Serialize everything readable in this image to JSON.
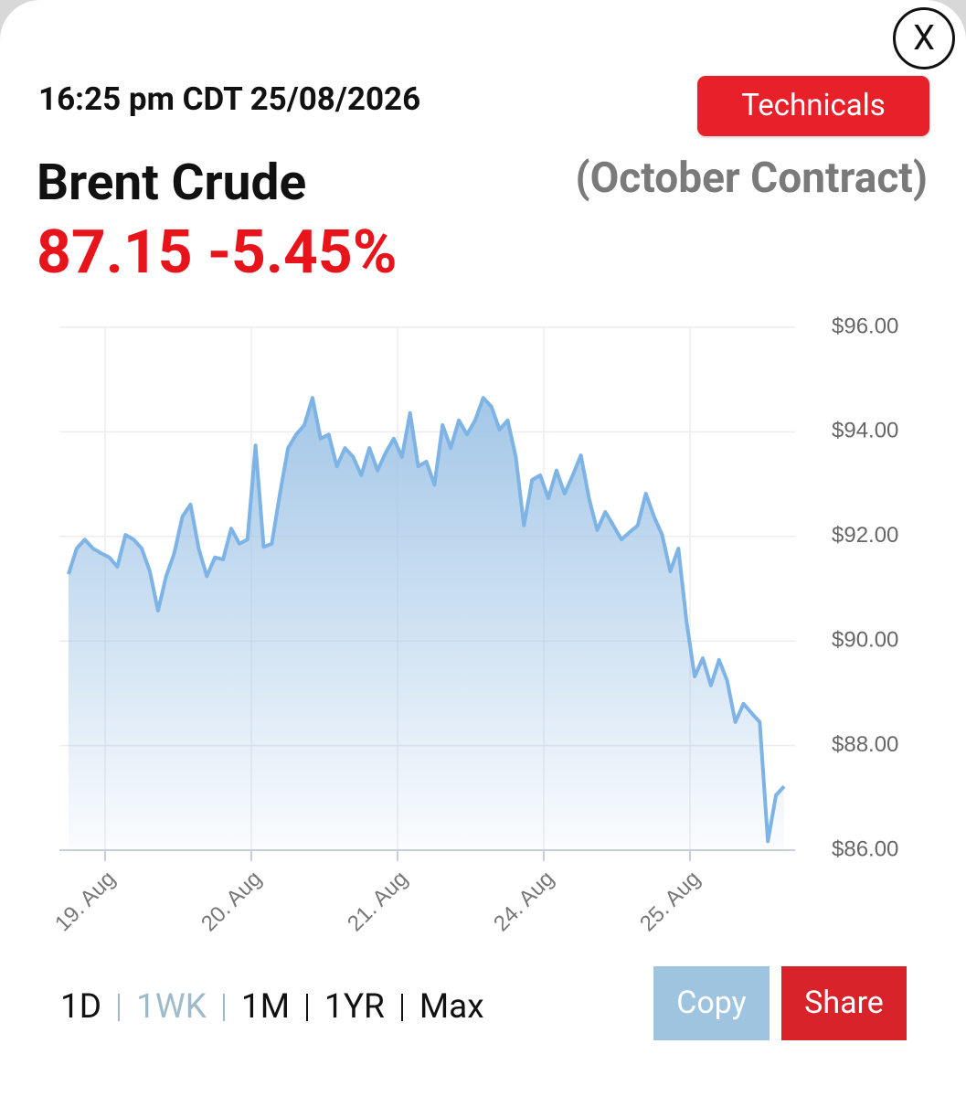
{
  "header": {
    "close": "X",
    "timestamp": "16:25 pm CDT 25/08/2026",
    "technicals": "Technicals",
    "instrument": "Brent Crude",
    "contract": "(October Contract)",
    "price": "87.15",
    "change": "-5.45%"
  },
  "chart_data": {
    "type": "area",
    "color": "#7eb3e6",
    "values": [
      91.28,
      91.77,
      91.94,
      91.77,
      91.68,
      91.6,
      91.42,
      92.03,
      91.94,
      91.77,
      91.33,
      90.58,
      91.24,
      91.68,
      92.38,
      92.61,
      91.77,
      91.24,
      91.6,
      91.56,
      92.15,
      91.86,
      91.94,
      93.74,
      91.8,
      91.86,
      92.82,
      93.69,
      93.95,
      94.13,
      94.65,
      93.87,
      93.95,
      93.34,
      93.69,
      93.52,
      93.17,
      93.69,
      93.26,
      93.6,
      93.87,
      93.52,
      94.36,
      93.34,
      93.43,
      92.99,
      94.13,
      93.69,
      94.22,
      93.95,
      94.22,
      94.65,
      94.48,
      94.04,
      94.22,
      93.52,
      92.21,
      93.08,
      93.17,
      92.73,
      93.26,
      92.82,
      93.17,
      93.55,
      92.73,
      92.12,
      92.47,
      92.21,
      91.94,
      92.08,
      92.21,
      92.82,
      92.38,
      92.03,
      91.33,
      91.77,
      90.37,
      89.32,
      89.67,
      89.15,
      89.64,
      89.24,
      88.45,
      88.8,
      88.62,
      88.45,
      86.17,
      87.05,
      87.22
    ],
    "xticks": [
      "19. Aug",
      "20. Aug",
      "21. Aug",
      "24. Aug",
      "25. Aug"
    ],
    "ylim": [
      86,
      96
    ],
    "yticks": [
      {
        "value": 86,
        "label": "$86.00"
      },
      {
        "value": 88,
        "label": "$88.00"
      },
      {
        "value": 90,
        "label": "$90.00"
      },
      {
        "value": 92,
        "label": "$92.00"
      },
      {
        "value": 94,
        "label": "$94.00"
      },
      {
        "value": 96,
        "label": "$96.00"
      }
    ],
    "grid": true
  },
  "controls": {
    "ranges": [
      "1D",
      "1WK",
      "1M",
      "1YR",
      "Max"
    ],
    "copy": "Copy",
    "share": "Share"
  }
}
